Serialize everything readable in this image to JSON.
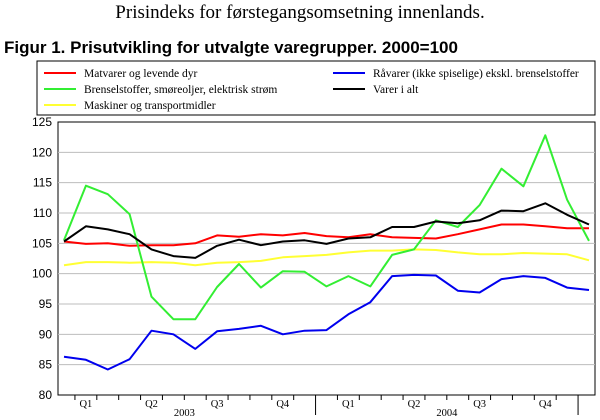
{
  "header": {
    "text": "Prisindeks for førstegangsomsetning innenlands."
  },
  "figure_title": "Figur 1. Prisutvikling for utvalgte varegrupper. 2000=100",
  "colors": {
    "matvarer": "#ff0000",
    "brensel": "#33ee33",
    "maskiner": "#ffff33",
    "ravarer": "#0000ee",
    "alt": "#000000"
  },
  "chart_data": {
    "type": "line",
    "title": "Figur 1. Prisutvikling for utvalgte varegrupper. 2000=100",
    "xlabel": "",
    "ylabel": "",
    "ylim": [
      80,
      125
    ],
    "yticks": [
      80,
      85,
      90,
      95,
      100,
      105,
      110,
      115,
      120,
      125
    ],
    "grid": true,
    "legend_position": "top",
    "x": [
      "2003-01",
      "2003-02",
      "2003-03",
      "2003-04",
      "2003-05",
      "2003-06",
      "2003-07",
      "2003-08",
      "2003-09",
      "2003-10",
      "2003-11",
      "2003-12",
      "2004-01",
      "2004-02",
      "2004-03",
      "2004-04",
      "2004-05",
      "2004-06",
      "2004-07",
      "2004-08",
      "2004-09",
      "2004-10",
      "2004-11",
      "2004-12",
      "2005-01"
    ],
    "quarter_labels": [
      {
        "label": "Q1",
        "month_index": 1
      },
      {
        "label": "Q2",
        "month_index": 4
      },
      {
        "label": "Q3",
        "month_index": 7
      },
      {
        "label": "Q4",
        "month_index": 10
      },
      {
        "label": "Q1",
        "month_index": 13
      },
      {
        "label": "Q2",
        "month_index": 16
      },
      {
        "label": "Q3",
        "month_index": 19
      },
      {
        "label": "Q4",
        "month_index": 22
      }
    ],
    "year_labels": [
      {
        "label": "2003",
        "month_index": 5.5
      },
      {
        "label": "2004",
        "month_index": 17.5
      }
    ],
    "series": [
      {
        "name": "Matvarer og levende dyr",
        "color_key": "matvarer",
        "values": [
          105.3,
          104.9,
          105.0,
          104.6,
          104.7,
          104.7,
          105.0,
          106.3,
          106.1,
          106.5,
          106.3,
          106.7,
          106.2,
          106.0,
          106.5,
          106.0,
          105.9,
          105.8,
          106.5,
          107.3,
          108.1,
          108.1,
          107.8,
          107.5,
          107.5
        ]
      },
      {
        "name": "Brenselstoffer, smøreoljer, elektrisk strøm",
        "color_key": "brensel",
        "values": [
          105.5,
          114.5,
          113.1,
          109.8,
          96.2,
          92.5,
          92.5,
          97.8,
          101.6,
          97.7,
          100.4,
          100.3,
          97.9,
          99.6,
          97.9,
          103.1,
          104.0,
          108.8,
          107.7,
          111.3,
          117.3,
          114.4,
          122.8,
          112.2,
          105.4
        ]
      },
      {
        "name": "Maskiner og transportmidler",
        "color_key": "maskiner",
        "values": [
          101.4,
          101.9,
          101.9,
          101.8,
          101.9,
          101.8,
          101.4,
          101.8,
          101.9,
          102.1,
          102.7,
          102.9,
          103.1,
          103.5,
          103.8,
          103.8,
          104.0,
          103.9,
          103.5,
          103.2,
          103.2,
          103.4,
          103.3,
          103.2,
          102.2
        ]
      },
      {
        "name": "Råvarer (ikke spiselige) ekskl. brenselstoffer",
        "color_key": "ravarer",
        "values": [
          86.3,
          85.8,
          84.2,
          85.9,
          90.6,
          90.0,
          87.6,
          90.5,
          90.9,
          91.4,
          90.0,
          90.6,
          90.7,
          93.3,
          95.3,
          99.6,
          99.8,
          99.7,
          97.2,
          96.9,
          99.1,
          99.6,
          99.3,
          97.7,
          97.3
        ]
      },
      {
        "name": "Varer i alt",
        "color_key": "alt",
        "values": [
          105.3,
          107.8,
          107.3,
          106.5,
          104.0,
          102.9,
          102.6,
          104.6,
          105.6,
          104.7,
          105.3,
          105.5,
          104.9,
          105.8,
          106.0,
          107.7,
          107.7,
          108.6,
          108.3,
          108.8,
          110.4,
          110.3,
          111.6,
          109.7,
          108.1
        ]
      }
    ]
  }
}
